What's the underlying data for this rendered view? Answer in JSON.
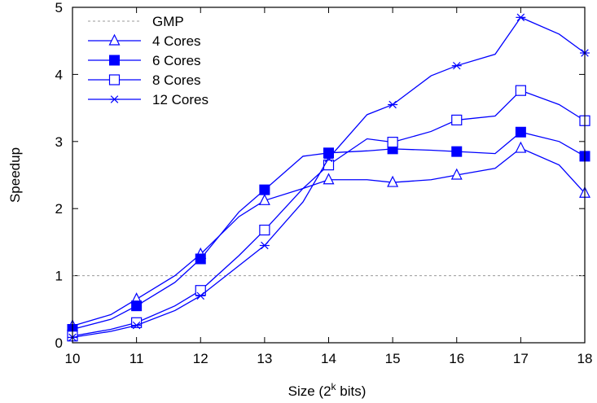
{
  "chart_data": {
    "type": "line",
    "xlabel": "Size (2",
    "xlabel_sup": "k",
    "xlabel_suffix": " bits)",
    "ylabel": "Speedup",
    "xlim": [
      10,
      18
    ],
    "ylim": [
      0,
      5
    ],
    "x_ticks": [
      "10",
      "11",
      "12",
      "13",
      "14",
      "15",
      "16",
      "17",
      "18"
    ],
    "y_ticks": [
      "0",
      "1",
      "2",
      "3",
      "4",
      "5"
    ],
    "grid": false,
    "legend_position": "top-left",
    "colors": {
      "series": "#0000ff",
      "baseline": "#9a9a9a",
      "frame": "#000000"
    },
    "baseline": {
      "name": "GMP",
      "y": 1
    },
    "series": [
      {
        "name": "4 Cores",
        "marker": "triangle",
        "x": [
          10,
          10.6,
          11,
          11.6,
          12,
          12.6,
          13,
          13.6,
          14,
          14.6,
          15,
          15.6,
          16,
          16.6,
          17,
          17.6,
          18
        ],
        "y": [
          0.25,
          0.42,
          0.65,
          1.0,
          1.32,
          1.88,
          2.12,
          2.3,
          2.43,
          2.43,
          2.39,
          2.43,
          2.5,
          2.6,
          2.9,
          2.65,
          2.23
        ]
      },
      {
        "name": "6 Cores",
        "marker": "square-filled",
        "x": [
          10,
          10.6,
          11,
          11.6,
          12,
          12.6,
          13,
          13.6,
          14,
          14.6,
          15,
          15.6,
          16,
          16.6,
          17,
          17.6,
          18
        ],
        "y": [
          0.2,
          0.35,
          0.55,
          0.9,
          1.25,
          1.95,
          2.28,
          2.78,
          2.83,
          2.86,
          2.89,
          2.87,
          2.85,
          2.82,
          3.14,
          3.0,
          2.78
        ]
      },
      {
        "name": "8 Cores",
        "marker": "square-open",
        "x": [
          10,
          10.6,
          11,
          11.6,
          12,
          12.6,
          13,
          13.6,
          14,
          14.6,
          15,
          15.6,
          16,
          16.6,
          17,
          17.6,
          18
        ],
        "y": [
          0.1,
          0.2,
          0.3,
          0.55,
          0.78,
          1.3,
          1.68,
          2.3,
          2.65,
          3.04,
          2.99,
          3.15,
          3.32,
          3.38,
          3.76,
          3.55,
          3.31
        ]
      },
      {
        "name": "12 Cores",
        "marker": "star",
        "x": [
          10,
          10.6,
          11,
          11.6,
          12,
          12.6,
          13,
          13.6,
          14,
          14.6,
          15,
          15.6,
          16,
          16.6,
          17,
          17.6,
          18
        ],
        "y": [
          0.08,
          0.17,
          0.26,
          0.48,
          0.7,
          1.15,
          1.45,
          2.1,
          2.75,
          3.4,
          3.55,
          3.98,
          4.13,
          4.3,
          4.85,
          4.6,
          4.32
        ]
      }
    ]
  }
}
